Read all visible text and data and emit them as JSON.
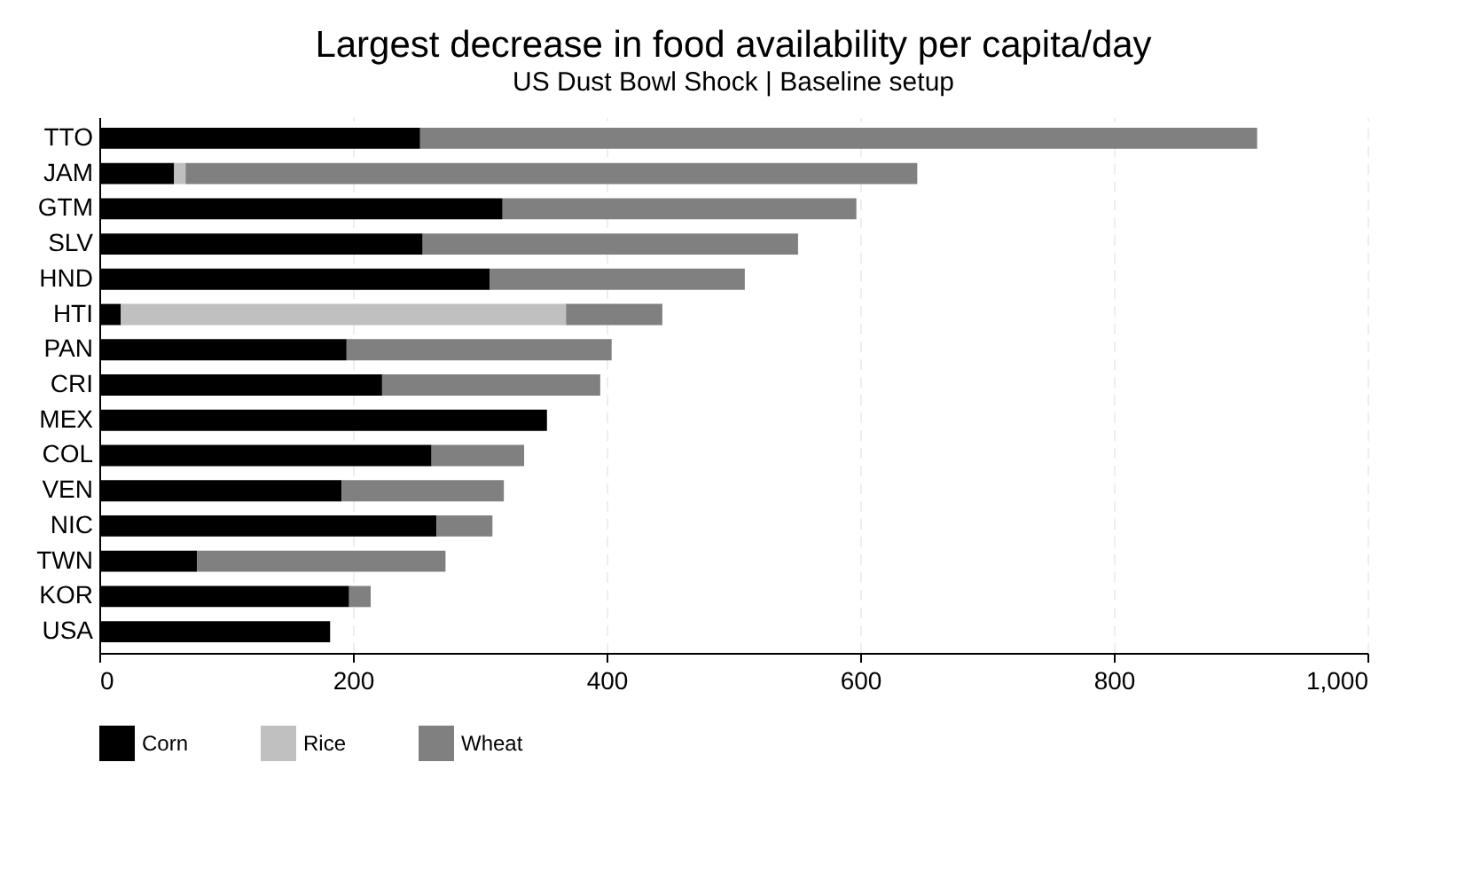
{
  "chart_data": {
    "type": "bar",
    "orientation": "horizontal",
    "stacked": true,
    "title": "Largest decrease in food availability per capita/day",
    "subtitle": "US Dust Bowl Shock | Baseline setup",
    "categories": [
      "TTO",
      "JAM",
      "GTM",
      "SLV",
      "HND",
      "HTI",
      "PAN",
      "CRI",
      "MEX",
      "COL",
      "VEN",
      "NIC",
      "TWN",
      "KOR",
      "USA"
    ],
    "series": [
      {
        "name": "Corn",
        "color": "#000000",
        "values": [
          253,
          59,
          318,
          255,
          308,
          17,
          195,
          223,
          353,
          262,
          191,
          266,
          77,
          197,
          182
        ]
      },
      {
        "name": "Rice",
        "color": "#c0c0c0",
        "values": [
          null,
          9,
          null,
          null,
          null,
          351,
          null,
          null,
          null,
          null,
          null,
          null,
          null,
          null,
          null
        ]
      },
      {
        "name": "Wheat",
        "color": "#808080",
        "values": [
          660,
          577,
          279,
          296,
          201,
          76,
          209,
          172,
          null,
          73,
          128,
          44,
          196,
          17,
          null
        ]
      }
    ],
    "xlim": [
      0,
      1000
    ],
    "xticks": [
      0,
      200,
      400,
      600,
      800,
      {
        "value": 1000,
        "label": "1,000"
      }
    ],
    "grid": "x",
    "legend": "bottom"
  }
}
